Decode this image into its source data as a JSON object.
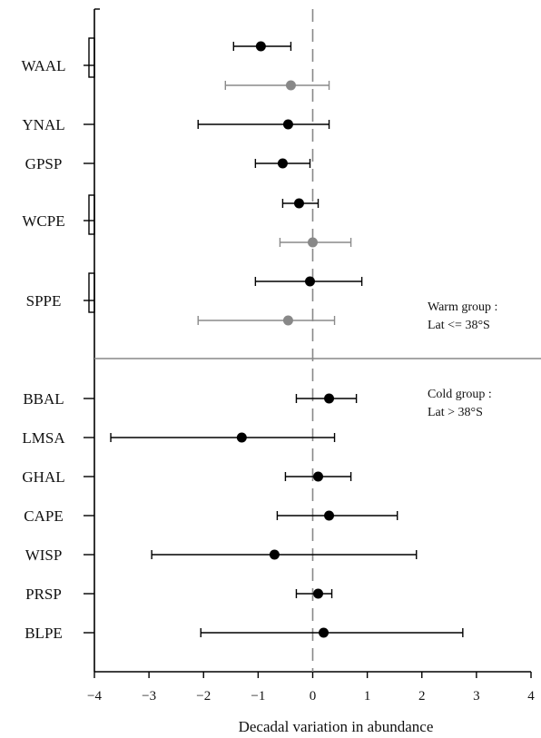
{
  "chart_data": {
    "type": "scatter",
    "subtype": "forest-plot-with-error-bars",
    "xlabel": "Decadal variation in abundance",
    "xlim": [
      -4,
      4
    ],
    "xticks": [
      "-4",
      "-3",
      "-2",
      "-1",
      "0",
      "1",
      "2",
      "3",
      "4"
    ],
    "grid": false,
    "reference_line": {
      "x": 0,
      "style": "dashed",
      "color": "#a0a0a0"
    },
    "colors": {
      "black_point": "#000000",
      "grey_point": "#888888",
      "grey_bar": "#8a8a8a",
      "divider": "#888888"
    },
    "groups": [
      {
        "label_lines": [
          "Warm group :",
          "Lat <= 38°S"
        ],
        "categories": [
          {
            "label": "WAAL",
            "bracketed": true,
            "points": [
              {
                "x": -0.95,
                "low": -1.45,
                "high": -0.4,
                "color": "black"
              },
              {
                "x": -0.4,
                "low": -1.6,
                "high": 0.3,
                "color": "grey"
              }
            ]
          },
          {
            "label": "YNAL",
            "bracketed": false,
            "points": [
              {
                "x": -0.45,
                "low": -2.1,
                "high": 0.3,
                "color": "black"
              }
            ]
          },
          {
            "label": "GPSP",
            "bracketed": false,
            "points": [
              {
                "x": -0.55,
                "low": -1.05,
                "high": -0.05,
                "color": "black"
              }
            ]
          },
          {
            "label": "WCPE",
            "bracketed": true,
            "points": [
              {
                "x": -0.25,
                "low": -0.55,
                "high": 0.1,
                "color": "black"
              },
              {
                "x": 0.0,
                "low": -0.6,
                "high": 0.7,
                "color": "grey"
              }
            ]
          },
          {
            "label": "SPPE",
            "bracketed": true,
            "points": [
              {
                "x": -0.05,
                "low": -1.05,
                "high": 0.9,
                "color": "black"
              },
              {
                "x": -0.45,
                "low": -2.1,
                "high": 0.4,
                "color": "grey"
              }
            ]
          }
        ]
      },
      {
        "label_lines": [
          "Cold group :",
          "Lat > 38°S"
        ],
        "categories": [
          {
            "label": "BBAL",
            "bracketed": false,
            "points": [
              {
                "x": 0.3,
                "low": -0.3,
                "high": 0.8,
                "color": "black"
              }
            ]
          },
          {
            "label": "LMSA",
            "bracketed": false,
            "points": [
              {
                "x": -1.3,
                "low": -3.7,
                "high": 0.4,
                "color": "black"
              }
            ]
          },
          {
            "label": "GHAL",
            "bracketed": false,
            "points": [
              {
                "x": 0.1,
                "low": -0.5,
                "high": 0.7,
                "color": "black"
              }
            ]
          },
          {
            "label": "CAPE",
            "bracketed": false,
            "points": [
              {
                "x": 0.3,
                "low": -0.65,
                "high": 1.55,
                "color": "black"
              }
            ]
          },
          {
            "label": "WISP",
            "bracketed": false,
            "points": [
              {
                "x": -0.7,
                "low": -2.95,
                "high": 1.9,
                "color": "black"
              }
            ]
          },
          {
            "label": "PRSP",
            "bracketed": false,
            "points": [
              {
                "x": 0.1,
                "low": -0.3,
                "high": 0.35,
                "color": "black"
              }
            ]
          },
          {
            "label": "BLPE",
            "bracketed": false,
            "points": [
              {
                "x": 0.2,
                "low": -2.05,
                "high": 2.75,
                "color": "black"
              }
            ]
          }
        ]
      }
    ]
  }
}
